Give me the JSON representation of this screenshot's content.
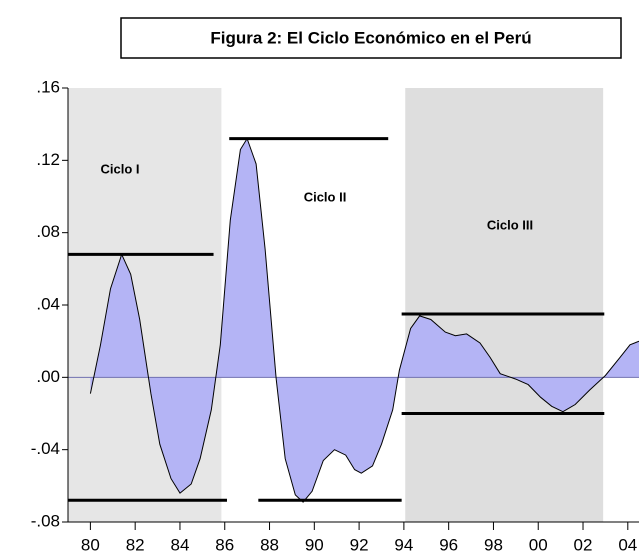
{
  "chart_data": {
    "type": "area",
    "title": "Figura 2: El Ciclo Económico en el Perú",
    "x": [
      1980.0,
      1980.45,
      1980.9,
      1981.4,
      1981.8,
      1982.2,
      1982.7,
      1983.1,
      1983.6,
      1984.0,
      1984.5,
      1984.9,
      1985.4,
      1985.8,
      1986.25,
      1986.7,
      1987.0,
      1987.4,
      1987.8,
      1988.3,
      1988.7,
      1989.15,
      1989.5,
      1989.9,
      1990.4,
      1990.9,
      1991.4,
      1991.8,
      1992.1,
      1992.6,
      1993.0,
      1993.5,
      1993.8,
      1994.3,
      1994.7,
      1995.2,
      1995.85,
      1996.3,
      1996.8,
      1997.4,
      1997.85,
      1998.3,
      1999.0,
      1999.55,
      2000.1,
      2000.6,
      2001.1,
      2001.65,
      2002.3,
      2003.0,
      2003.65,
      2004.1,
      2004.5
    ],
    "series": [
      {
        "color": "#b4b4f5",
        "values": [
          -0.009,
          0.018,
          0.049,
          0.068,
          0.057,
          0.032,
          -0.009,
          -0.037,
          -0.056,
          -0.064,
          -0.059,
          -0.045,
          -0.018,
          0.018,
          0.087,
          0.126,
          0.132,
          0.118,
          0.071,
          -0.001,
          -0.045,
          -0.065,
          -0.069,
          -0.063,
          -0.046,
          -0.04,
          -0.043,
          -0.051,
          -0.053,
          -0.049,
          -0.037,
          -0.018,
          0.004,
          0.027,
          0.034,
          0.032,
          0.025,
          0.023,
          0.024,
          0.019,
          0.011,
          0.002,
          -0.001,
          -0.004,
          -0.011,
          -0.016,
          -0.019,
          -0.015,
          -0.007,
          0.001,
          0.011,
          0.018,
          0.02
        ]
      }
    ],
    "xlim": [
      1979,
      2004.5
    ],
    "ylim": [
      -0.08,
      0.16
    ],
    "xticks": [
      {
        "value": 1980,
        "label": "80"
      },
      {
        "value": 1982,
        "label": "82"
      },
      {
        "value": 1984,
        "label": "84"
      },
      {
        "value": 1986,
        "label": "86"
      },
      {
        "value": 1988,
        "label": "88"
      },
      {
        "value": 1990,
        "label": "90"
      },
      {
        "value": 1992,
        "label": "92"
      },
      {
        "value": 1994,
        "label": "94"
      },
      {
        "value": 1996,
        "label": "96"
      },
      {
        "value": 1998,
        "label": "98"
      },
      {
        "value": 2000,
        "label": "00"
      },
      {
        "value": 2002,
        "label": "02"
      },
      {
        "value": 2004,
        "label": "04"
      }
    ],
    "yticks": [
      {
        "value": -0.08,
        "label": "-.08"
      },
      {
        "value": -0.04,
        "label": "-.04"
      },
      {
        "value": 0,
        "label": ".00"
      },
      {
        "value": 0.04,
        "label": ".04"
      },
      {
        "value": 0.08,
        "label": ".08"
      },
      {
        "value": 0.12,
        "label": ".12"
      },
      {
        "value": 0.16,
        "label": ".16"
      }
    ],
    "shaded_regions": [
      [
        1979,
        1985.85
      ],
      [
        1994.06,
        2002.9
      ]
    ],
    "reference_lines": [
      {
        "y": 0.068,
        "x": [
          1979,
          1985.5
        ]
      },
      {
        "y": -0.068,
        "x": [
          1979,
          1986.1
        ]
      },
      {
        "y": 0.132,
        "x": [
          1986.2,
          1993.3
        ]
      },
      {
        "y": -0.068,
        "x": [
          1987.5,
          1993.9
        ]
      },
      {
        "y": 0.035,
        "x": [
          1993.9,
          2002.95
        ]
      },
      {
        "y": -0.02,
        "x": [
          1993.9,
          2002.95
        ]
      }
    ],
    "annotations": [
      "Ciclo I",
      "Ciclo II",
      "Ciclo III"
    ]
  }
}
